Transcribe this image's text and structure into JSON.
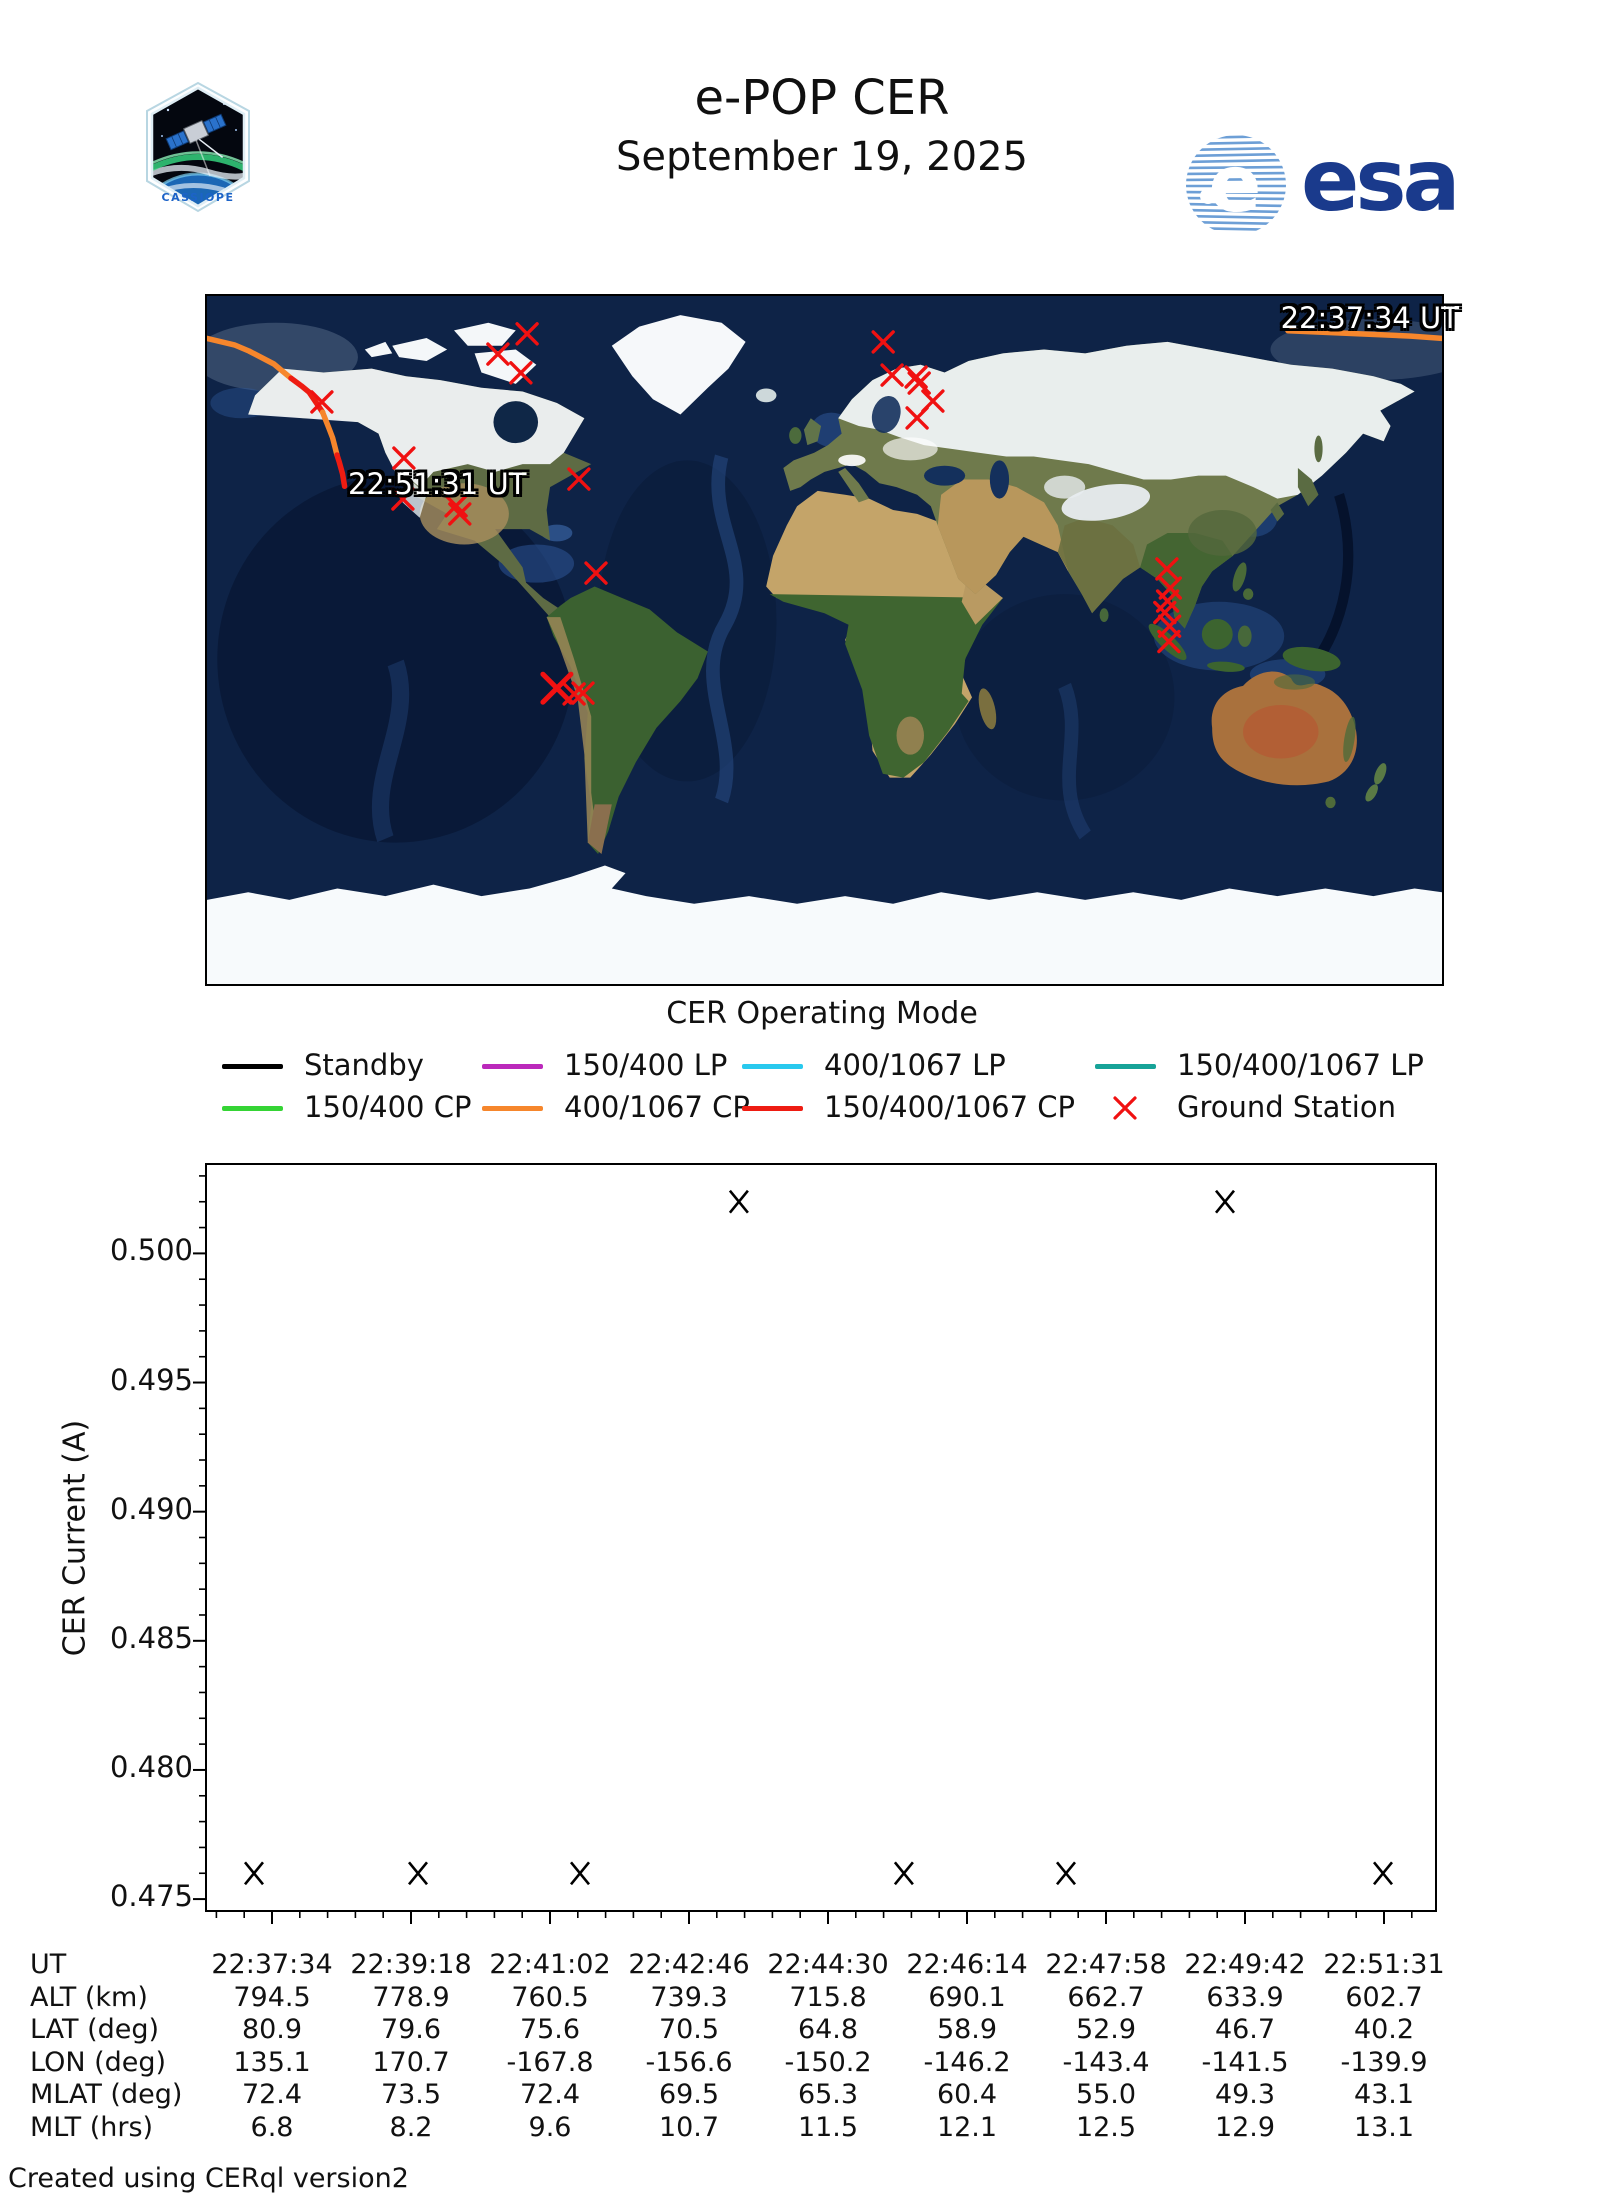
{
  "header": {
    "title": "e-POP CER",
    "date": "September 19, 2025",
    "esa_label": "esa",
    "cassiope_label": "CASSIOPE"
  },
  "map": {
    "start_time_label": "22:37:34 UT",
    "end_time_label": "22:51:31 UT",
    "track_colors": {
      "orange_mode": "#f6862c",
      "red_mode": "#ee1c12"
    },
    "track_segments": [
      {
        "mode": "400/1067 CP",
        "color": "orange_mode",
        "points": [
          [
            135.1,
            80.9
          ],
          [
            171.0,
            79.5
          ],
          [
            180.0,
            78.9
          ]
        ]
      },
      {
        "mode": "400/1067 CP",
        "color": "orange_mode",
        "points": [
          [
            -180.0,
            78.9
          ],
          [
            -172.0,
            77.2
          ],
          [
            -167.8,
            75.6
          ],
          [
            -160.5,
            72.2
          ],
          [
            -155.5,
            68.5
          ]
        ]
      },
      {
        "mode": "150/400/1067 CP",
        "color": "red_mode",
        "points": [
          [
            -155.5,
            68.5
          ],
          [
            -152.5,
            66.5
          ],
          [
            -150.2,
            64.8
          ],
          [
            -146.3,
            59.6
          ]
        ]
      },
      {
        "mode": "400/1067 CP",
        "color": "orange_mode",
        "points": [
          [
            -146.3,
            59.6
          ],
          [
            -144.5,
            55.5
          ],
          [
            -143.4,
            52.9
          ],
          [
            -142.1,
            48.4
          ]
        ]
      },
      {
        "mode": "150/400/1067 CP",
        "color": "red_mode",
        "points": [
          [
            -142.1,
            48.4
          ],
          [
            -141.5,
            46.7
          ],
          [
            -140.5,
            43.5
          ],
          [
            -139.9,
            40.2
          ]
        ]
      }
    ],
    "ground_station_color": "#f01111",
    "ground_stations": [
      {
        "lon": -86.7,
        "lat": 80.1
      },
      {
        "lon": -95.2,
        "lat": 74.8
      },
      {
        "lon": -88.5,
        "lat": 69.9
      },
      {
        "lon": -146.5,
        "lat": 62.3
      },
      {
        "lon": -122.6,
        "lat": 47.6
      },
      {
        "lon": -71.6,
        "lat": 42.1
      },
      {
        "lon": -122.9,
        "lat": 36.9
      },
      {
        "lon": -107.4,
        "lat": 35.1
      },
      {
        "lon": -106.3,
        "lat": 33.0
      },
      {
        "lon": -66.6,
        "lat": 17.5
      },
      {
        "lon": -78.0,
        "lat": -12.6,
        "bold": true
      },
      {
        "lon": -73.0,
        "lat": -14.1
      },
      {
        "lon": -70.4,
        "lat": -13.9
      },
      {
        "lon": 17.1,
        "lat": 78.0
      },
      {
        "lon": 19.7,
        "lat": 69.3
      },
      {
        "lon": 26.7,
        "lat": 68.8
      },
      {
        "lon": 27.6,
        "lat": 67.2
      },
      {
        "lon": 31.6,
        "lat": 62.5
      },
      {
        "lon": 27.0,
        "lat": 58.1
      },
      {
        "lon": 99.8,
        "lat": 18.6
      },
      {
        "lon": 100.8,
        "lat": 13.6
      },
      {
        "lon": 100.0,
        "lat": 10.2
      },
      {
        "lon": 99.2,
        "lat": 7.2
      },
      {
        "lon": 100.6,
        "lat": 3.6
      },
      {
        "lon": 100.4,
        "lat": -0.4
      }
    ]
  },
  "legend": {
    "title": "CER Operating Mode",
    "rows": [
      [
        {
          "label": "Standby",
          "color": "#000000",
          "type": "line"
        },
        {
          "label": "150/400 LP",
          "color": "#bb29bb",
          "type": "line"
        },
        {
          "label": "400/1067 LP",
          "color": "#29c9ee",
          "type": "line"
        },
        {
          "label": "150/400/1067 LP",
          "color": "#17a398",
          "type": "line"
        }
      ],
      [
        {
          "label": "150/400 CP",
          "color": "#35d435",
          "type": "line"
        },
        {
          "label": "400/1067 CP",
          "color": "#f6862c",
          "type": "line"
        },
        {
          "label": "150/400/1067 CP",
          "color": "#ee1c12",
          "type": "line"
        },
        {
          "label": "Ground Station",
          "color": "#f01111",
          "type": "marker"
        }
      ]
    ]
  },
  "chart_data": {
    "type": "scatter",
    "ylabel": "CER Current (A)",
    "ylim": [
      0.4745,
      0.5035
    ],
    "yticks": [
      "0.475",
      "0.480",
      "0.485",
      "0.490",
      "0.495",
      "0.500"
    ],
    "ytick_values": [
      0.475,
      0.48,
      0.485,
      0.49,
      0.495,
      0.5
    ],
    "y_minor_step": 0.001,
    "x_axis_times": [
      "22:37:34",
      "22:39:18",
      "22:41:02",
      "22:42:46",
      "22:44:30",
      "22:46:14",
      "22:47:58",
      "22:49:42",
      "22:51:31"
    ],
    "marker": "x",
    "marker_color": "#000000",
    "points": [
      {
        "ut": "22:37:21",
        "x_frac": 0.0398,
        "value": 0.476
      },
      {
        "ut": "22:39:22",
        "x_frac": 0.1729,
        "value": 0.476
      },
      {
        "ut": "22:41:23",
        "x_frac": 0.3044,
        "value": 0.476
      },
      {
        "ut": "22:43:21",
        "x_frac": 0.4334,
        "value": 0.502
      },
      {
        "ut": "22:45:24",
        "x_frac": 0.5673,
        "value": 0.476
      },
      {
        "ut": "22:47:25",
        "x_frac": 0.6989,
        "value": 0.476
      },
      {
        "ut": "22:49:23",
        "x_frac": 0.8279,
        "value": 0.502
      },
      {
        "ut": "22:51:30",
        "x_frac": 0.9562,
        "value": 0.476
      }
    ]
  },
  "table": {
    "rows": [
      {
        "label": "UT",
        "values": [
          "22:37:34",
          "22:39:18",
          "22:41:02",
          "22:42:46",
          "22:44:30",
          "22:46:14",
          "22:47:58",
          "22:49:42",
          "22:51:31"
        ]
      },
      {
        "label": "ALT (km)",
        "values": [
          "794.5",
          "778.9",
          "760.5",
          "739.3",
          "715.8",
          "690.1",
          "662.7",
          "633.9",
          "602.7"
        ]
      },
      {
        "label": "LAT (deg)",
        "values": [
          "80.9",
          "79.6",
          "75.6",
          "70.5",
          "64.8",
          "58.9",
          "52.9",
          "46.7",
          "40.2"
        ]
      },
      {
        "label": "LON (deg)",
        "values": [
          "135.1",
          "170.7",
          "-167.8",
          "-156.6",
          "-150.2",
          "-146.2",
          "-143.4",
          "-141.5",
          "-139.9"
        ]
      },
      {
        "label": "MLAT (deg)",
        "values": [
          "72.4",
          "73.5",
          "72.4",
          "69.5",
          "65.3",
          "60.4",
          "55.0",
          "49.3",
          "43.1"
        ]
      },
      {
        "label": "MLT (hrs)",
        "values": [
          "6.8",
          "8.2",
          "9.6",
          "10.7",
          "11.5",
          "12.1",
          "12.5",
          "12.9",
          "13.1"
        ]
      }
    ]
  },
  "footer": "Created using CERql version2"
}
